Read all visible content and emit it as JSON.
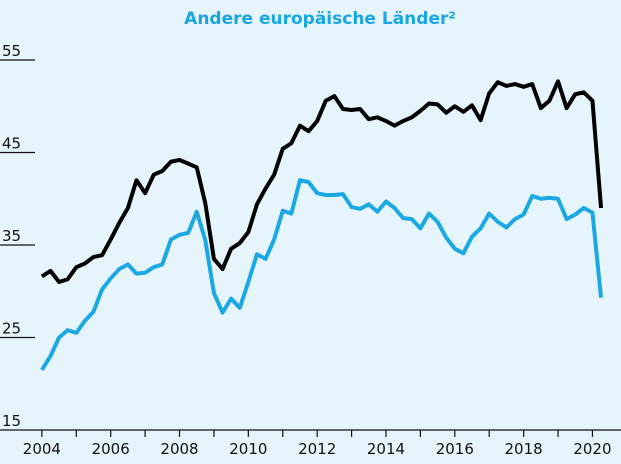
{
  "chart_data": {
    "type": "line",
    "title": "Andere europäische Länder²",
    "x": [
      2004,
      2004.25,
      2004.5,
      2004.75,
      2005,
      2005.25,
      2005.5,
      2005.75,
      2006,
      2006.25,
      2006.5,
      2006.75,
      2007,
      2007.25,
      2007.5,
      2007.75,
      2008,
      2008.25,
      2008.5,
      2008.75,
      2009,
      2009.25,
      2009.5,
      2009.75,
      2010,
      2010.25,
      2010.5,
      2010.75,
      2011,
      2011.25,
      2011.5,
      2011.75,
      2012,
      2012.25,
      2012.5,
      2012.75,
      2013,
      2013.25,
      2013.5,
      2013.75,
      2014,
      2014.25,
      2014.5,
      2014.75,
      2015,
      2015.25,
      2015.5,
      2015.75,
      2016,
      2016.25,
      2016.5,
      2016.75,
      2017,
      2017.25,
      2017.5,
      2017.75,
      2018,
      2018.25,
      2018.5,
      2018.75,
      2019,
      2019.25,
      2019.5,
      2019.75,
      2020,
      2020.25
    ],
    "series": [
      {
        "color": "#000000",
        "values": [
          31.6,
          32.2,
          31.0,
          31.3,
          32.6,
          33.0,
          33.7,
          33.9,
          35.6,
          37.4,
          39.0,
          42.0,
          40.6,
          42.6,
          43.0,
          44.0,
          44.2,
          43.8,
          43.4,
          39.5,
          33.5,
          32.4,
          34.6,
          35.2,
          36.4,
          39.4,
          41.1,
          42.6,
          45.4,
          46.0,
          47.9,
          47.3,
          48.4,
          50.6,
          51.1,
          49.7,
          49.6,
          49.7,
          48.6,
          48.8,
          48.4,
          47.9,
          48.4,
          48.8,
          49.5,
          50.3,
          50.2,
          49.3,
          50.0,
          49.4,
          50.1,
          48.5,
          51.4,
          52.6,
          52.2,
          52.4,
          52.1,
          52.4,
          49.8,
          50.6,
          52.7,
          49.8,
          51.3,
          51.5,
          50.6,
          39.0
        ]
      },
      {
        "color": "#1ba8e3",
        "values": [
          21.5,
          23.0,
          25.0,
          25.8,
          25.5,
          26.8,
          27.8,
          30.2,
          31.4,
          32.4,
          32.9,
          31.9,
          32.0,
          32.6,
          32.9,
          35.6,
          36.1,
          36.3,
          38.6,
          35.5,
          29.8,
          27.7,
          29.2,
          28.2,
          31.0,
          34.0,
          33.5,
          35.6,
          38.7,
          38.4,
          42.0,
          41.8,
          40.6,
          40.4,
          40.4,
          40.5,
          39.1,
          38.9,
          39.4,
          38.6,
          39.7,
          39.0,
          37.9,
          37.8,
          36.8,
          38.4,
          37.5,
          35.8,
          34.6,
          34.1,
          35.9,
          36.8,
          38.4,
          37.5,
          36.9,
          37.8,
          38.3,
          40.3,
          40.0,
          40.1,
          40.0,
          37.8,
          38.3,
          39.0,
          38.5,
          29.3
        ]
      }
    ],
    "xlim": [
      2003.8,
      2020.83
    ],
    "xticks": [
      2004,
      2006,
      2008,
      2010,
      2012,
      2014,
      2016,
      2018,
      2020
    ],
    "xminor_ticks": [
      2005,
      2007,
      2009,
      2011,
      2013,
      2015,
      2017,
      2019
    ],
    "ylim": [
      15,
      55
    ],
    "yticks": [
      15,
      25,
      35,
      45,
      55
    ]
  }
}
